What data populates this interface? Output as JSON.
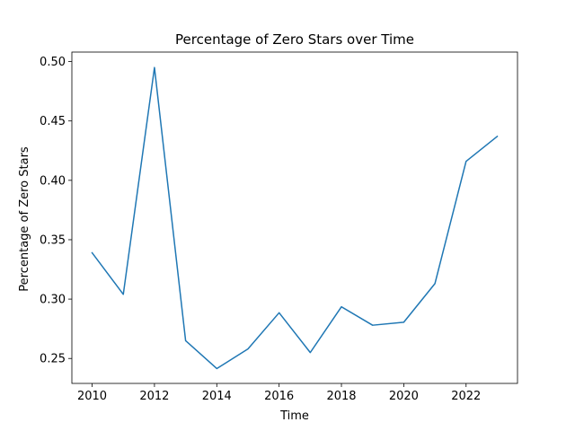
{
  "chart_data": {
    "type": "line",
    "title": "Percentage of Zero Stars over Time",
    "xlabel": "Time",
    "ylabel": "Percentage of Zero Stars",
    "x": [
      2010,
      2011,
      2012,
      2013,
      2014,
      2015,
      2016,
      2017,
      2018,
      2019,
      2020,
      2021,
      2022,
      2023
    ],
    "series": [
      {
        "values": [
          0.339,
          0.304,
          0.495,
          0.265,
          0.2415,
          0.258,
          0.2885,
          0.255,
          0.2935,
          0.278,
          0.2805,
          0.313,
          0.416,
          0.437
        ],
        "color": "#1f77b4"
      }
    ],
    "xlim": [
      2009.35,
      2023.65
    ],
    "ylim": [
      0.229,
      0.508
    ],
    "xticks": [
      2010,
      2012,
      2014,
      2016,
      2018,
      2020,
      2022
    ],
    "yticks": [
      0.25,
      0.3,
      0.35,
      0.4,
      0.45,
      0.5
    ],
    "ytick_labels": [
      "0.25",
      "0.30",
      "0.35",
      "0.40",
      "0.45",
      "0.50"
    ],
    "grid": false,
    "legend": "none"
  }
}
